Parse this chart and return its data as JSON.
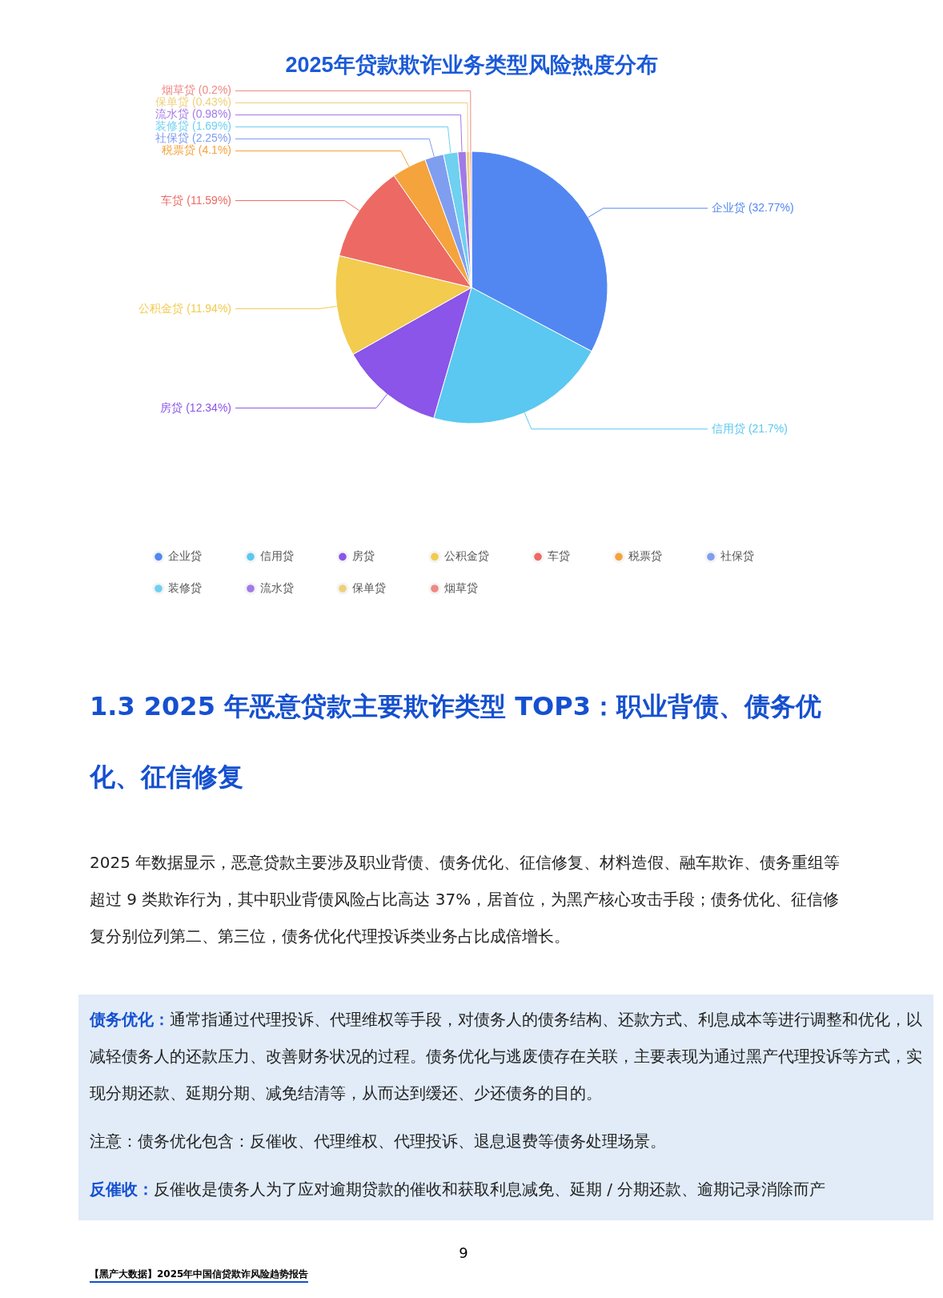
{
  "chart_data": {
    "type": "pie",
    "title": "2025年贷款欺诈业务类型风险热度分布",
    "categories": [
      "企业贷",
      "信用贷",
      "房贷",
      "公积金贷",
      "车贷",
      "税票贷",
      "社保贷",
      "装修贷",
      "流水贷",
      "保单贷",
      "烟草贷"
    ],
    "values": [
      32.77,
      21.7,
      12.34,
      11.94,
      11.59,
      4.1,
      2.25,
      1.69,
      0.98,
      0.43,
      0.2
    ],
    "value_labels": [
      "(32.77%)",
      "(21.7%)",
      "(12.34%)",
      "(11.94%)",
      "(11.59%)",
      "(4.1%)",
      "(2.25%)",
      "(1.69%)",
      "(0.98%)",
      "(0.43%)",
      "(0.2%)"
    ],
    "colors": [
      "#5287f2",
      "#5ac8f0",
      "#8a55e8",
      "#f2cb4f",
      "#ec6a63",
      "#f5a33c",
      "#7f9ef0",
      "#6fd0f0",
      "#a27ae8",
      "#efd07a",
      "#ec8a85"
    ],
    "legend": "bottom",
    "annotations": [
      "1.3 2025 年恶意贷款主要欺诈类型 TOP3：职业背债、债务优化、征信修复",
      "2025 年数据显示，恶意贷款主要涉及职业背债、债务优化、征信修复、材料造假、融车欺诈、债务重组等超过 9 类欺诈行为，其中职业背债风险占比高达 37%，居首位，为黑产核心攻击手段；债务优化、征信修复分别位列第二、第三位，债务优化代理投诉类业务占比成倍增长。",
      "债务优化：",
      "通常指通过代理投诉、代理维权等手段，对债务人的债务结构、还款方式、利息成本等进行调整和优化，以减轻债务人的还款压力、改善财务状况的过程。债务优化与逃废债存在关联，主要表现为通过黑产代理投诉等方式，实现分期还款、延期分期、减免结清等，从而达到缓还、少还债务的目的。",
      "注意：债务优化包含：反催收、代理维权、代理投诉、退息退费等债务处理场景。",
      "反催收：",
      "反催收是债务人为了应对逾期贷款的催收和获取利息减免、延期 / 分期还款、逾期记录消除而产",
      "9",
      "【黑产大数据】2025年中国信贷欺诈风险趋势报告"
    ]
  }
}
